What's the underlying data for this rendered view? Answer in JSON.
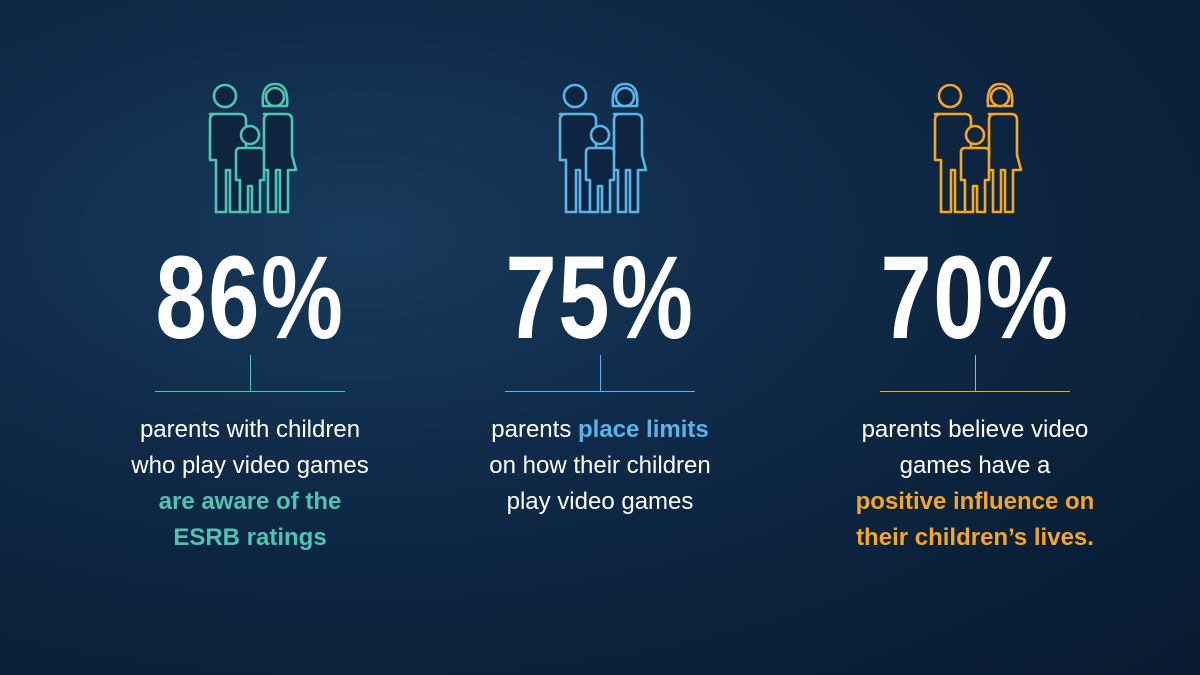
{
  "stats": [
    {
      "value": "86%",
      "color": "#4fc3b4",
      "parts": [
        {
          "text": "parents with children who play video games",
          "highlight": false
        },
        {
          "text": "are aware of the ESRB ratings",
          "highlight": true
        }
      ]
    },
    {
      "value": "75%",
      "color": "#5ab4e8",
      "parts": [
        {
          "text": "parents",
          "highlight": false
        },
        {
          "text": "place limits",
          "highlight": true
        },
        {
          "text": "on how their children play video games",
          "highlight": false
        }
      ]
    },
    {
      "value": "70%",
      "color": "#f5a623",
      "parts": [
        {
          "text": "parents believe video games have a",
          "highlight": false
        },
        {
          "text": "positive influence on their children’s lives.",
          "highlight": true
        }
      ]
    }
  ]
}
